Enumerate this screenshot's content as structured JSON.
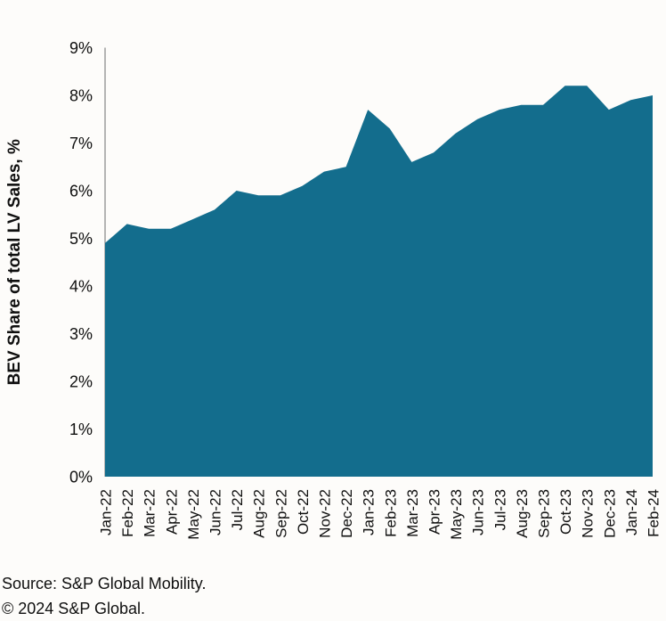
{
  "figure": {
    "source_line": "Source: S&P Global Mobility.",
    "copyright_line": "© 2024 S&P Global."
  },
  "colors": {
    "area_fill": "#136d8d",
    "axis_line": "#9b9b9b",
    "text": "#0f0f0f",
    "background": "#fdfcfa"
  },
  "chart_data": {
    "type": "area",
    "title": "",
    "xlabel": "",
    "ylabel": "BEV Share of total LV Sales, %",
    "unit": "%",
    "ylim": [
      0,
      9
    ],
    "y_ticks": [
      0,
      1,
      2,
      3,
      4,
      5,
      6,
      7,
      8,
      9
    ],
    "y_tick_labels": [
      "0%",
      "1%",
      "2%",
      "3%",
      "4%",
      "5%",
      "6%",
      "7%",
      "8%",
      "9%"
    ],
    "grid": false,
    "legend": false,
    "categories": [
      "Jan-22",
      "Feb-22",
      "Mar-22",
      "Apr-22",
      "May-22",
      "Jun-22",
      "Jul-22",
      "Aug-22",
      "Sep-22",
      "Oct-22",
      "Nov-22",
      "Dec-22",
      "Jan-23",
      "Feb-23",
      "Mar-23",
      "Apr-23",
      "May-23",
      "Jun-23",
      "Jul-23",
      "Aug-23",
      "Sep-23",
      "Oct-23",
      "Nov-23",
      "Dec-23",
      "Jan-24",
      "Feb-24"
    ],
    "values": [
      4.9,
      5.3,
      5.2,
      5.2,
      5.4,
      5.6,
      6.0,
      5.9,
      5.9,
      6.1,
      6.4,
      6.5,
      7.7,
      7.3,
      6.6,
      6.8,
      7.2,
      7.5,
      7.7,
      7.8,
      7.8,
      8.2,
      8.2,
      7.7,
      7.9,
      8.0
    ]
  }
}
